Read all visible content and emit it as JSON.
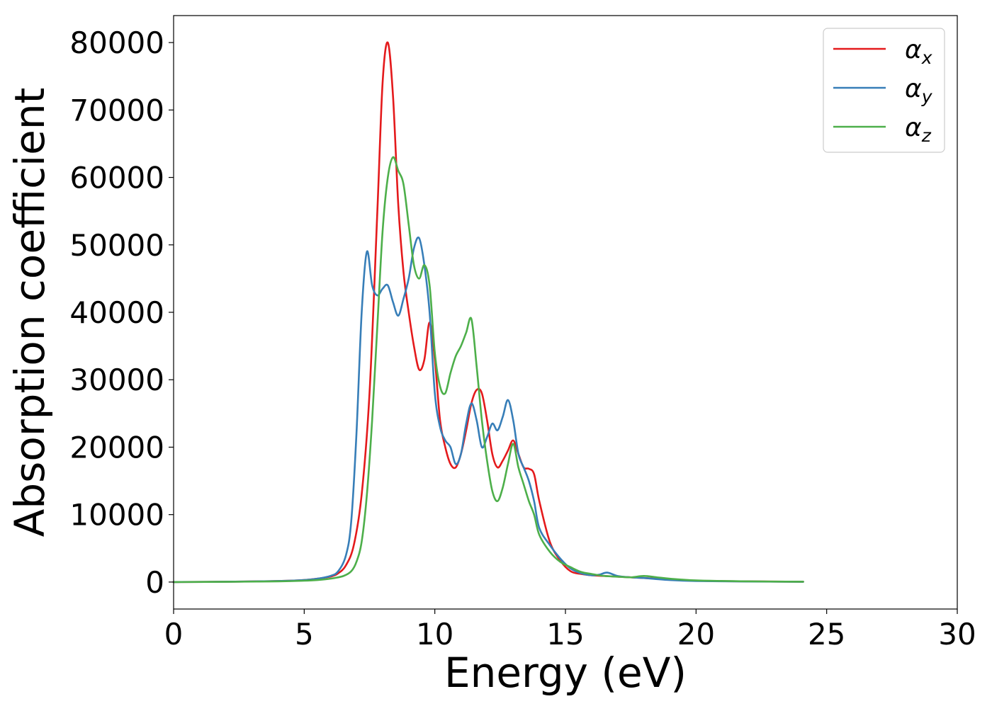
{
  "chart_data": {
    "type": "line",
    "title": "",
    "xlabel": "Energy (eV)",
    "ylabel": "Absorption coefficient",
    "xlim": [
      0,
      30
    ],
    "ylim": [
      -4000,
      84000
    ],
    "xticks": [
      0,
      5,
      10,
      15,
      20,
      25,
      30
    ],
    "yticks": [
      0,
      10000,
      20000,
      30000,
      40000,
      50000,
      60000,
      70000,
      80000
    ],
    "grid": false,
    "legend": {
      "placement": "top-right"
    },
    "series": [
      {
        "name": "α_x",
        "label_base": "α",
        "label_sub": "x",
        "color": "#e41a1c",
        "x": [
          0,
          2,
          4,
          5,
          5.5,
          6,
          6.3,
          6.6,
          6.9,
          7.2,
          7.5,
          7.8,
          8.0,
          8.2,
          8.4,
          8.6,
          8.8,
          9.0,
          9.2,
          9.4,
          9.6,
          9.8,
          10.0,
          10.2,
          10.4,
          10.6,
          10.8,
          11.0,
          11.2,
          11.4,
          11.6,
          11.8,
          12.0,
          12.2,
          12.4,
          12.6,
          12.8,
          13.0,
          13.2,
          13.4,
          13.6,
          13.8,
          14.0,
          14.4,
          14.8,
          15.2,
          15.6,
          16.0,
          16.5,
          17.0,
          18.0,
          19.0,
          20.0,
          22.0,
          24.1
        ],
        "y": [
          0,
          50,
          150,
          300,
          500,
          800,
          1300,
          2500,
          5500,
          13000,
          28000,
          55000,
          74000,
          80000,
          72000,
          56000,
          46000,
          40000,
          35000,
          31500,
          33000,
          38500,
          33000,
          24000,
          20000,
          17500,
          17000,
          19000,
          22500,
          26500,
          28500,
          28000,
          24000,
          19000,
          17000,
          18000,
          19500,
          21000,
          19000,
          17000,
          16800,
          16000,
          12000,
          6000,
          3200,
          1600,
          1200,
          1000,
          900,
          800,
          600,
          400,
          200,
          100,
          50
        ]
      },
      {
        "name": "α_y",
        "label_base": "α",
        "label_sub": "y",
        "color": "#377eb8",
        "x": [
          0,
          2,
          4,
          5,
          5.5,
          6,
          6.3,
          6.6,
          6.8,
          7.0,
          7.2,
          7.4,
          7.6,
          7.8,
          8.0,
          8.2,
          8.4,
          8.6,
          8.8,
          9.0,
          9.2,
          9.4,
          9.6,
          9.8,
          10.0,
          10.2,
          10.4,
          10.6,
          10.8,
          11.0,
          11.2,
          11.4,
          11.6,
          11.8,
          12.0,
          12.2,
          12.4,
          12.6,
          12.8,
          13.0,
          13.2,
          13.4,
          13.6,
          13.8,
          14.0,
          14.4,
          14.8,
          15.2,
          15.6,
          16.0,
          16.3,
          16.6,
          17.0,
          17.5,
          18.0,
          19.0,
          20.0,
          22.0,
          24.1
        ],
        "y": [
          0,
          50,
          150,
          300,
          500,
          900,
          1600,
          4000,
          9000,
          22000,
          40000,
          49000,
          44000,
          42500,
          43500,
          44000,
          41500,
          39500,
          42000,
          45000,
          49500,
          51000,
          47000,
          40000,
          28000,
          23000,
          21000,
          20000,
          17500,
          19000,
          23500,
          26500,
          24000,
          20000,
          21500,
          23500,
          22500,
          24500,
          27000,
          24000,
          19000,
          17000,
          15000,
          12000,
          8000,
          5500,
          3500,
          2000,
          1300,
          1000,
          1100,
          1400,
          900,
          700,
          600,
          300,
          150,
          80,
          40
        ]
      },
      {
        "name": "α_z",
        "label_base": "α",
        "label_sub": "z",
        "color": "#4daf4a",
        "x": [
          0,
          2,
          4,
          5,
          5.5,
          6,
          6.5,
          6.8,
          7.0,
          7.2,
          7.4,
          7.6,
          7.8,
          8.0,
          8.2,
          8.4,
          8.6,
          8.8,
          9.0,
          9.2,
          9.4,
          9.6,
          9.8,
          10.0,
          10.2,
          10.4,
          10.6,
          10.8,
          11.0,
          11.2,
          11.4,
          11.6,
          11.8,
          12.0,
          12.2,
          12.4,
          12.6,
          12.8,
          13.0,
          13.2,
          13.4,
          13.6,
          13.8,
          14.0,
          14.4,
          14.8,
          15.2,
          15.6,
          16.0,
          16.5,
          17.0,
          17.5,
          18.0,
          18.5,
          19.0,
          20.0,
          22.0,
          24.1
        ],
        "y": [
          0,
          40,
          100,
          200,
          300,
          500,
          900,
          1600,
          3000,
          6000,
          13000,
          24000,
          38000,
          52000,
          60000,
          63000,
          61000,
          59000,
          53000,
          47000,
          45000,
          47000,
          44000,
          34000,
          29000,
          28000,
          31000,
          33500,
          35000,
          37000,
          39000,
          32000,
          24000,
          18000,
          13500,
          12000,
          14000,
          17500,
          20500,
          17000,
          14500,
          12000,
          10000,
          7000,
          4500,
          3000,
          2200,
          1500,
          1200,
          900,
          800,
          700,
          900,
          700,
          500,
          250,
          100,
          50
        ]
      }
    ]
  }
}
